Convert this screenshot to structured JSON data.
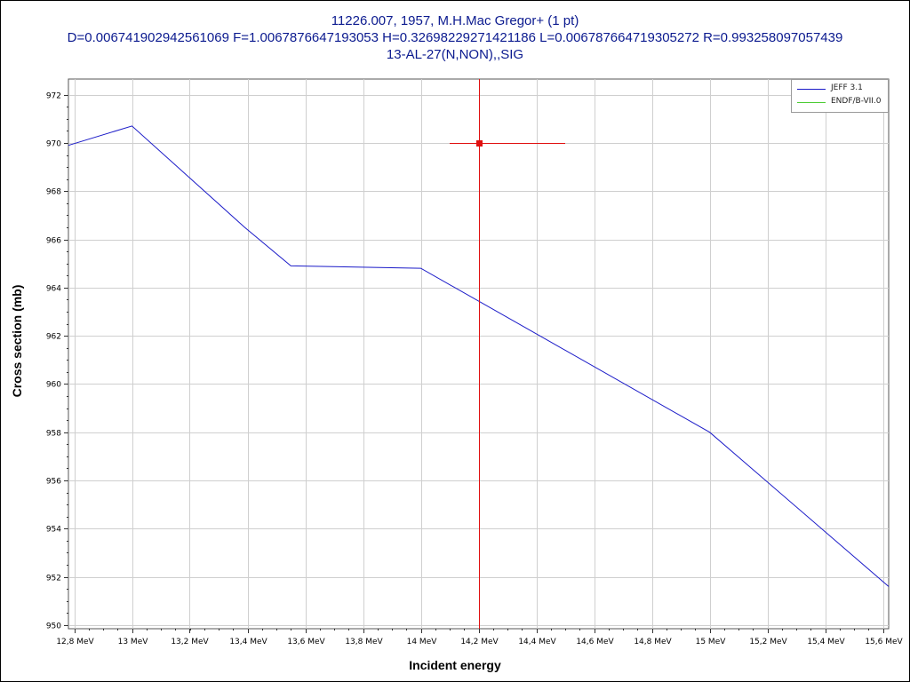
{
  "title_lines": [
    "11226.007, 1957, M.H.Mac Gregor+ (1 pt)",
    "D=0.006741902942561069 F=1.0067876647193053 H=0.32698229271421186 L=0.006787664719305272 R=0.993258097057439",
    "13-AL-27(N,NON),,SIG"
  ],
  "colors": {
    "title": "#0b1a8f",
    "series_jeff": "#1a1ac8",
    "series_endf": "#4ccc33",
    "measurement": "#e01010",
    "grid": "#cfcfcf"
  },
  "chart_data": {
    "type": "line",
    "title": "11226.007, 1957, M.H.Mac Gregor+ (1 pt)",
    "xlabel": "Incident energy",
    "ylabel": "Cross section (mb)",
    "xlim": [
      12.78,
      15.62
    ],
    "ylim": [
      949.85,
      972.65
    ],
    "x_tick_labels": [
      "12,8 MeV",
      "13 MeV",
      "13,2 MeV",
      "13,4 MeV",
      "13,6 MeV",
      "13,8 MeV",
      "14 MeV",
      "14,2 MeV",
      "14,4 MeV",
      "14,6 MeV",
      "14,8 MeV",
      "15 MeV",
      "15,2 MeV",
      "15,4 MeV",
      "15,6 MeV"
    ],
    "x_ticks": [
      12.8,
      13.0,
      13.2,
      13.4,
      13.6,
      13.8,
      14.0,
      14.2,
      14.4,
      14.6,
      14.8,
      15.0,
      15.2,
      15.4,
      15.6
    ],
    "y_ticks": [
      950,
      952,
      954,
      956,
      958,
      960,
      962,
      964,
      966,
      968,
      970,
      972
    ],
    "grid": true,
    "legend_position": "top-right",
    "series": [
      {
        "name": "JEFF 3.1",
        "color": "#1a1ac8",
        "x": [
          12.78,
          13.0,
          13.39,
          13.55,
          14.0,
          15.0,
          15.62
        ],
        "y": [
          969.9,
          970.7,
          966.5,
          964.9,
          964.8,
          958.0,
          951.6
        ]
      },
      {
        "name": "ENDF/B-VII.0",
        "color": "#4ccc33",
        "x": [],
        "y": []
      }
    ],
    "measurement": {
      "x": 14.2,
      "y": 970.0,
      "x_err_low": 14.1,
      "x_err_high": 14.5,
      "color": "#e01010"
    }
  }
}
